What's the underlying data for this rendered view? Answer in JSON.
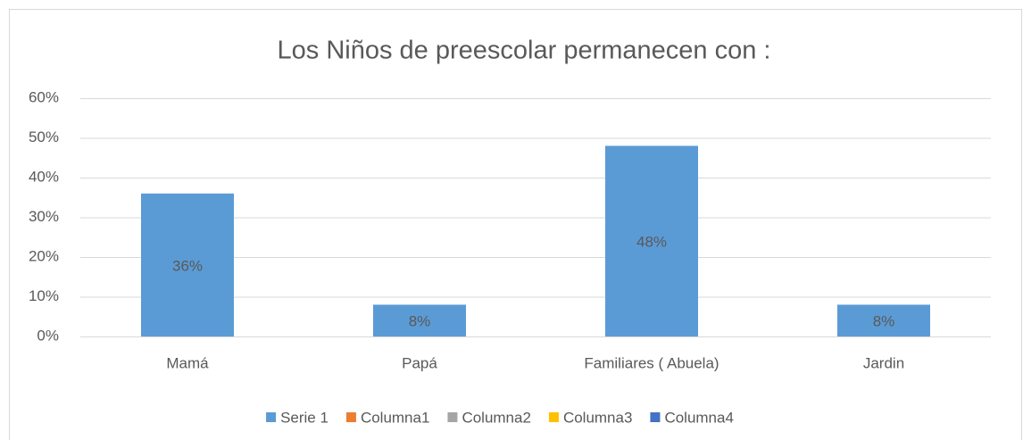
{
  "chart_data": {
    "type": "bar",
    "title": "Los Niños de preescolar permanecen con :",
    "categories": [
      "Mamá",
      "Papá",
      "Familiares ( Abuela)",
      "Jardin"
    ],
    "series": [
      {
        "name": "Serie 1",
        "color": "#5b9bd5",
        "values": [
          36,
          8,
          48,
          8
        ],
        "value_labels": [
          "36%",
          "8%",
          "48%",
          "8%"
        ]
      },
      {
        "name": "Columna1",
        "color": "#ed7d31",
        "values": [
          null,
          null,
          null,
          null
        ]
      },
      {
        "name": "Columna2",
        "color": "#a5a5a5",
        "values": [
          null,
          null,
          null,
          null
        ]
      },
      {
        "name": "Columna3",
        "color": "#ffc000",
        "values": [
          null,
          null,
          null,
          null
        ]
      },
      {
        "name": "Columna4",
        "color": "#4472c4",
        "values": [
          null,
          null,
          null,
          null
        ]
      }
    ],
    "ylim": [
      0,
      60
    ],
    "yticks": [
      {
        "value": 0,
        "label": "0%"
      },
      {
        "value": 10,
        "label": "10%"
      },
      {
        "value": 20,
        "label": "20%"
      },
      {
        "value": 30,
        "label": "30%"
      },
      {
        "value": 40,
        "label": "40%"
      },
      {
        "value": 50,
        "label": "50%"
      },
      {
        "value": 60,
        "label": "60%"
      }
    ],
    "grid": true,
    "legend": "bottom"
  }
}
